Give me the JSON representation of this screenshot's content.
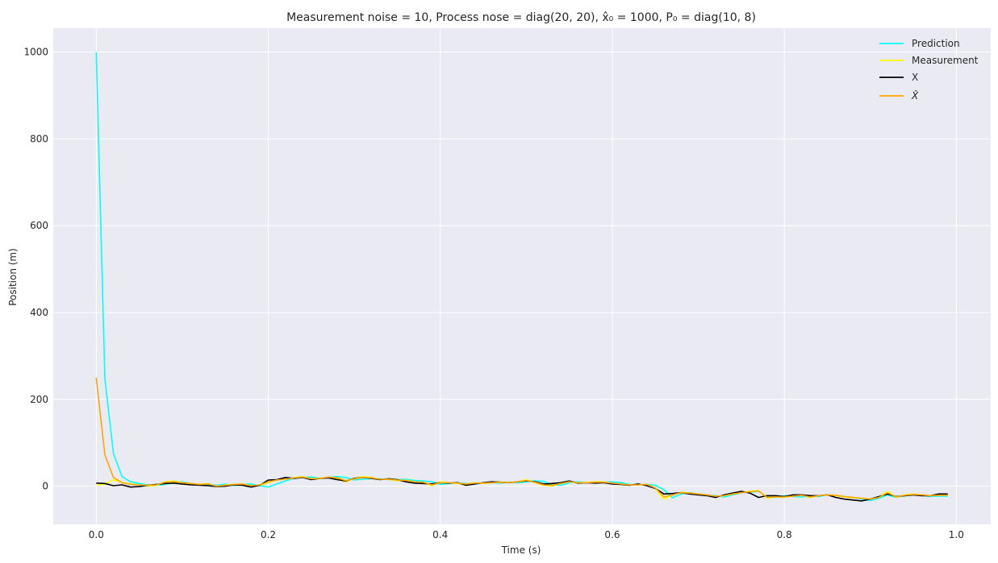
{
  "chart_data": {
    "type": "line",
    "title": "Measurement noise = 10, Process nose = diag(20, 20), x̂₀ = 1000, P₀ = diag(10, 8)",
    "xlabel": "Time (s)",
    "ylabel": "Position (m)",
    "xlim": [
      -0.05,
      1.04
    ],
    "ylim": [
      -88,
      1055
    ],
    "xticks": [
      0.0,
      0.2,
      0.4,
      0.6,
      0.8,
      1.0
    ],
    "xtick_labels": [
      "0.0",
      "0.2",
      "0.4",
      "0.6",
      "0.8",
      "1.0"
    ],
    "yticks": [
      0,
      200,
      400,
      600,
      800,
      1000
    ],
    "ytick_labels": [
      "0",
      "200",
      "400",
      "600",
      "800",
      "1000"
    ],
    "grid": true,
    "legend_position": "top-right",
    "x": [
      0.0,
      0.01,
      0.02,
      0.03,
      0.04,
      0.05,
      0.06,
      0.07,
      0.08,
      0.09,
      0.1,
      0.11,
      0.12,
      0.13,
      0.14,
      0.15,
      0.16,
      0.17,
      0.18,
      0.19,
      0.2,
      0.21,
      0.22,
      0.23,
      0.24,
      0.25,
      0.26,
      0.27,
      0.28,
      0.29,
      0.3,
      0.31,
      0.32,
      0.33,
      0.34,
      0.35,
      0.36,
      0.37,
      0.38,
      0.39,
      0.4,
      0.41,
      0.42,
      0.43,
      0.44,
      0.45,
      0.46,
      0.47,
      0.48,
      0.49,
      0.5,
      0.51,
      0.52,
      0.53,
      0.54,
      0.55,
      0.56,
      0.57,
      0.58,
      0.59,
      0.6,
      0.61,
      0.62,
      0.63,
      0.64,
      0.65,
      0.66,
      0.67,
      0.68,
      0.69,
      0.7,
      0.71,
      0.72,
      0.73,
      0.74,
      0.75,
      0.76,
      0.77,
      0.78,
      0.79,
      0.8,
      0.81,
      0.82,
      0.83,
      0.84,
      0.85,
      0.86,
      0.87,
      0.88,
      0.89,
      0.9,
      0.91,
      0.92,
      0.93,
      0.94,
      0.95,
      0.96,
      0.97,
      0.98,
      0.99
    ],
    "series": [
      {
        "name": "Prediction",
        "color": "#00ffff",
        "values": [
          1000,
          248,
          75,
          22,
          10,
          6,
          3,
          2,
          4,
          8,
          10,
          6,
          3,
          4,
          2,
          5,
          1,
          4,
          5,
          1,
          -2,
          5,
          12,
          18,
          20,
          21,
          18,
          20,
          22,
          20,
          14,
          16,
          18,
          17,
          15,
          15,
          16,
          13,
          12,
          10,
          4,
          6,
          8,
          6,
          5,
          7,
          8,
          7,
          9,
          8,
          10,
          12,
          11,
          3,
          2,
          8,
          10,
          8,
          8,
          9,
          10,
          8,
          4,
          3,
          4,
          2,
          -8,
          -27,
          -18,
          -15,
          -18,
          -20,
          -22,
          -25,
          -20,
          -15,
          -14,
          -12,
          -25,
          -26,
          -22,
          -24,
          -25,
          -23,
          -24,
          -20,
          -22,
          -24,
          -26,
          -30,
          -33,
          -28,
          -20,
          -26,
          -22,
          -20,
          -21,
          -24,
          -23,
          -23
        ]
      },
      {
        "name": "Measurement",
        "color": "#ffff00",
        "values": [
          2,
          5,
          15,
          8,
          5,
          3,
          0,
          2,
          10,
          12,
          8,
          6,
          4,
          6,
          -2,
          3,
          4,
          5,
          0,
          2,
          8,
          15,
          16,
          20,
          22,
          15,
          18,
          20,
          17,
          10,
          18,
          22,
          20,
          15,
          16,
          12,
          14,
          10,
          8,
          1,
          10,
          8,
          6,
          5,
          8,
          6,
          8,
          10,
          8,
          10,
          15,
          8,
          2,
          0,
          7,
          11,
          7,
          9,
          10,
          10,
          6,
          4,
          3,
          3,
          4,
          -6,
          -30,
          -20,
          -14,
          -16,
          -18,
          -20,
          -24,
          -22,
          -18,
          -14,
          -12,
          -10,
          -28,
          -25,
          -26,
          -22,
          -20,
          -26,
          -22,
          -20,
          -22,
          -25,
          -27,
          -28,
          -30,
          -25,
          -12,
          -26,
          -20,
          -18,
          -20,
          -22,
          -20,
          -20
        ]
      },
      {
        "name": "X",
        "color": "#000000",
        "values": [
          7,
          6,
          1,
          3,
          -2,
          -1,
          2,
          4,
          6,
          7,
          5,
          3,
          2,
          1,
          -1,
          0,
          3,
          2,
          -2,
          2,
          14,
          15,
          20,
          18,
          20,
          15,
          18,
          19,
          15,
          12,
          18,
          20,
          18,
          15,
          17,
          15,
          10,
          7,
          6,
          5,
          8,
          7,
          8,
          2,
          5,
          8,
          10,
          9,
          8,
          10,
          12,
          10,
          5,
          6,
          8,
          12,
          7,
          8,
          7,
          8,
          5,
          4,
          2,
          5,
          1,
          -5,
          -18,
          -17,
          -15,
          -18,
          -20,
          -22,
          -26,
          -20,
          -16,
          -12,
          -16,
          -26,
          -22,
          -22,
          -24,
          -20,
          -20,
          -22,
          -22,
          -20,
          -26,
          -30,
          -32,
          -34,
          -30,
          -24,
          -18,
          -24,
          -22,
          -20,
          -22,
          -22,
          -18,
          -18
        ]
      },
      {
        "name": "X̂",
        "color": "#ffa500",
        "values": [
          250,
          72,
          20,
          8,
          4,
          3,
          2,
          3,
          9,
          10,
          8,
          6,
          4,
          5,
          0,
          2,
          4,
          5,
          1,
          3,
          10,
          14,
          16,
          19,
          21,
          17,
          18,
          21,
          19,
          13,
          17,
          20,
          19,
          16,
          16,
          14,
          13,
          10,
          9,
          3,
          8,
          8,
          7,
          5,
          7,
          7,
          8,
          9,
          8,
          10,
          13,
          9,
          3,
          2,
          6,
          10,
          8,
          8,
          9,
          9,
          7,
          5,
          3,
          3,
          4,
          -4,
          -25,
          -20,
          -15,
          -16,
          -18,
          -20,
          -23,
          -22,
          -18,
          -15,
          -13,
          -11,
          -26,
          -25,
          -25,
          -23,
          -21,
          -25,
          -22,
          -20,
          -21,
          -24,
          -26,
          -28,
          -30,
          -26,
          -15,
          -25,
          -21,
          -19,
          -20,
          -22,
          -21,
          -21
        ]
      }
    ]
  }
}
